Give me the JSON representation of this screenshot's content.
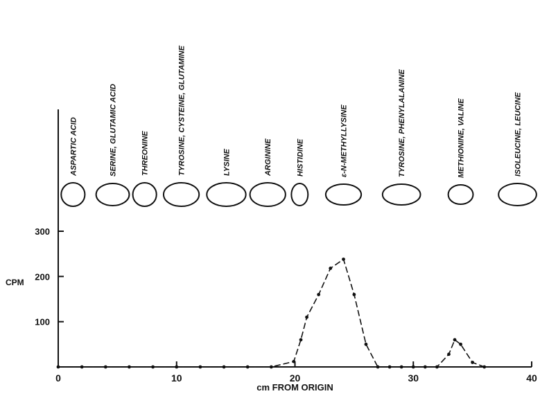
{
  "chart_data": {
    "type": "line",
    "xlabel": "cm FROM ORIGIN",
    "ylabel": "CPM",
    "xlim": [
      0,
      40
    ],
    "ylim": [
      0,
      350
    ],
    "x_ticks": [
      0,
      10,
      20,
      30,
      40
    ],
    "y_ticks": [
      100,
      200,
      300
    ],
    "grid": false,
    "series": [
      {
        "values": [
          {
            "x": 0,
            "y": 0
          },
          {
            "x": 2,
            "y": 0
          },
          {
            "x": 4,
            "y": 0
          },
          {
            "x": 6,
            "y": 0
          },
          {
            "x": 8,
            "y": 0
          },
          {
            "x": 10,
            "y": 0
          },
          {
            "x": 12,
            "y": 0
          },
          {
            "x": 14,
            "y": 0
          },
          {
            "x": 16,
            "y": 0
          },
          {
            "x": 18,
            "y": 0
          },
          {
            "x": 19.9,
            "y": 12
          },
          {
            "x": 20.5,
            "y": 60
          },
          {
            "x": 21,
            "y": 110
          },
          {
            "x": 22,
            "y": 160
          },
          {
            "x": 23,
            "y": 218
          },
          {
            "x": 24.1,
            "y": 238
          },
          {
            "x": 25,
            "y": 160
          },
          {
            "x": 26,
            "y": 50
          },
          {
            "x": 27,
            "y": 0
          },
          {
            "x": 28,
            "y": 0
          },
          {
            "x": 29,
            "y": 0
          },
          {
            "x": 30,
            "y": 0
          },
          {
            "x": 31,
            "y": 0
          },
          {
            "x": 32,
            "y": 0
          },
          {
            "x": 33,
            "y": 28
          },
          {
            "x": 33.5,
            "y": 60
          },
          {
            "x": 34,
            "y": 50
          },
          {
            "x": 35,
            "y": 10
          },
          {
            "x": 36,
            "y": 0
          }
        ]
      }
    ],
    "spots": [
      {
        "label": "ASPARTIC ACID",
        "x": 1.25,
        "rx": 1.0,
        "ry": 17
      },
      {
        "label": "SERINE, GLUTAMIC ACID",
        "x": 4.6,
        "rx": 1.4,
        "ry": 16
      },
      {
        "label": "THREONINE",
        "x": 7.3,
        "rx": 1.0,
        "ry": 17
      },
      {
        "label": "TYROSINE, CYSTEINE, GLUTAMINE",
        "x": 10.4,
        "rx": 1.5,
        "ry": 17
      },
      {
        "label": "LYSINE",
        "x": 14.2,
        "rx": 1.65,
        "ry": 17
      },
      {
        "label": "ARGININE",
        "x": 17.7,
        "rx": 1.5,
        "ry": 17
      },
      {
        "label": "HISTIDINE",
        "x": 20.4,
        "rx": 0.7,
        "ry": 16
      },
      {
        "label": "ε-N-METHYLLYSINE",
        "x": 24.1,
        "rx": 1.5,
        "ry": 15
      },
      {
        "label": "TYROSINE, PHENYLALANINE",
        "x": 29.0,
        "rx": 1.6,
        "ry": 15
      },
      {
        "label": "METHIONINE, VALINE",
        "x": 34.0,
        "rx": 1.05,
        "ry": 14
      },
      {
        "label": "ISOLEUCINE, LEUCINE",
        "x": 38.8,
        "rx": 1.6,
        "ry": 16
      }
    ]
  }
}
